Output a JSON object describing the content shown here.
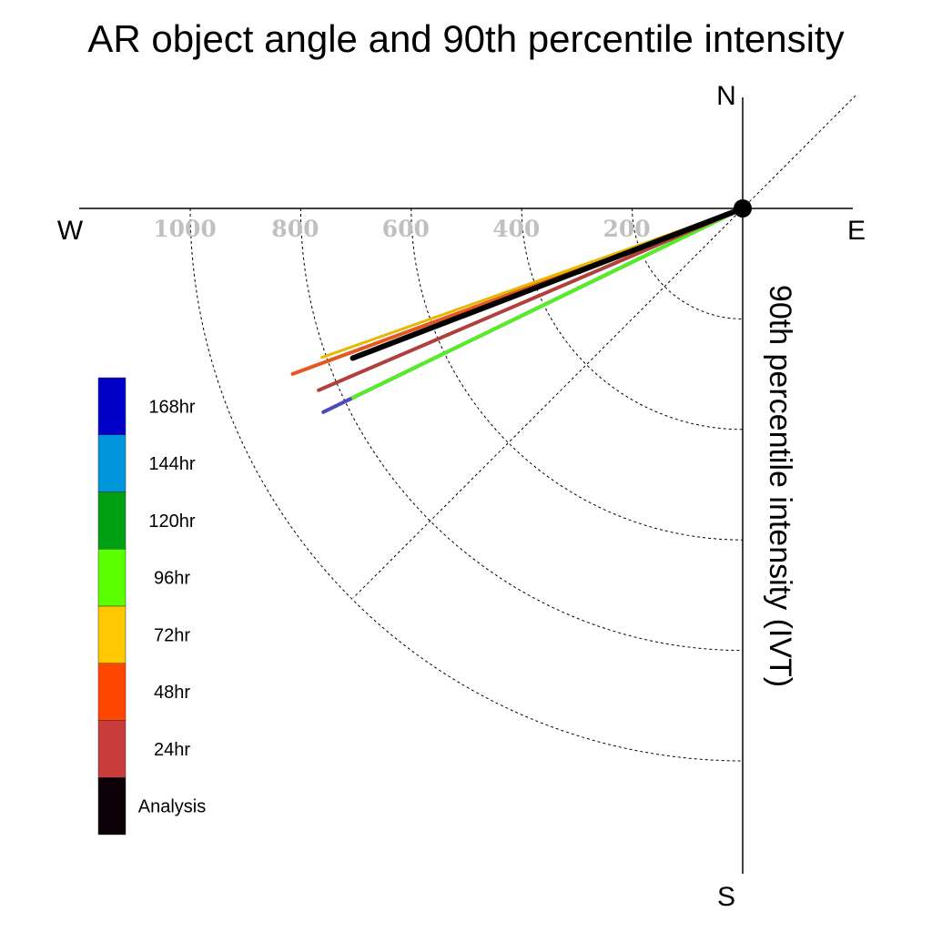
{
  "chart_data": {
    "type": "polar-vector",
    "title": "AR object angle and 90th percentile intensity",
    "ylabel": "90th percentile intensity (IVT)",
    "compass": {
      "north": "N",
      "south": "S",
      "east": "E",
      "west": "W"
    },
    "radial_ticks": [
      "200",
      "400",
      "600",
      "800",
      "1000"
    ],
    "radial_tick_values": [
      200,
      400,
      600,
      800,
      1000
    ],
    "rlim": [
      0,
      1000
    ],
    "angle_unit": "degrees, 0 = W, clockwise toward S",
    "series": [
      {
        "name": "168hr",
        "color": "#0000c8",
        "intensity": 844,
        "angle": 25.9,
        "plotted": false
      },
      {
        "name": "144hr",
        "color": "#0096dc",
        "intensity": 844,
        "angle": 25.9,
        "plotted": false
      },
      {
        "name": "120hr",
        "color": "#00a014",
        "intensity": 844,
        "angle": 25.9,
        "plotted": false
      },
      {
        "name": "96hr",
        "color": "#5aff00",
        "intensity": 784,
        "angle": 25.9,
        "plotted": true,
        "draw_color": "#55ee22"
      },
      {
        "name": "72hr",
        "color": "#ffc800",
        "intensity": 808,
        "angle": 19.5,
        "plotted": true,
        "draw_color": "#e6b800"
      },
      {
        "name": "48hr",
        "color": "#ff4600",
        "intensity": 868,
        "angle": 20.2,
        "plotted": true,
        "draw_color": "#e5571c"
      },
      {
        "name": "24hr",
        "color": "#c83c3c",
        "intensity": 835,
        "angle": 23.2,
        "plotted": true,
        "draw_color": "#b0403c"
      },
      {
        "name": "Analysis",
        "color": "#0a0005",
        "intensity": 756,
        "angle": 21.0,
        "plotted": true,
        "draw_color": "#000000"
      }
    ],
    "blue_overlay_series": {
      "color": "#4a4ab8",
      "intensity": 844,
      "angle": 25.9
    },
    "grid": true,
    "legend_position": "left"
  }
}
